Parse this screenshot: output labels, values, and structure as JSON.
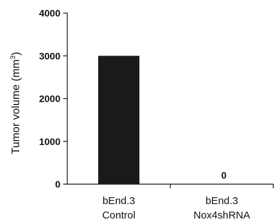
{
  "chart_data": {
    "type": "bar",
    "ylabel_main": "Tumor volume (mm",
    "ylabel_sup": "3",
    "ylabel_close": ")",
    "ylim": [
      0,
      4000
    ],
    "yticks": [
      "0",
      "1000",
      "2000",
      "3000",
      "4000"
    ],
    "categories": [
      {
        "line1": "bEnd.3",
        "line2": "Control"
      },
      {
        "line1": "bEnd.3",
        "line2": "Nox4shRNA"
      }
    ],
    "values": [
      3000,
      0
    ],
    "data_labels": [
      "",
      "0"
    ],
    "bar_color": "#1a1a1a"
  }
}
